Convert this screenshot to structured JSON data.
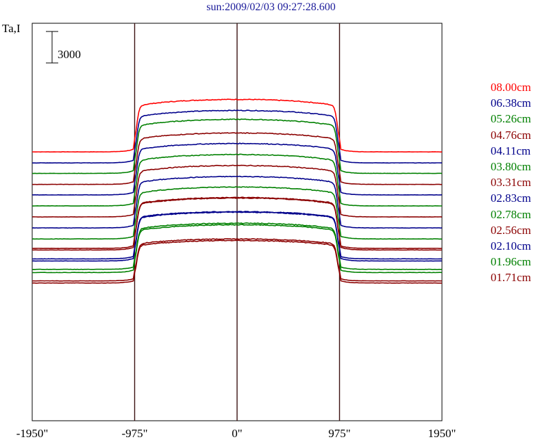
{
  "chart_data": {
    "type": "line",
    "title": "sun:2009/02/03 09:27:28.600",
    "ylabel": "Ta,I",
    "xlabel": "",
    "scale_bar_value": 3000,
    "scale_bar_label": "3000",
    "x_ticks": [
      {
        "value": -1950,
        "label": "-1950\""
      },
      {
        "value": -975,
        "label": "-975\""
      },
      {
        "value": 0,
        "label": "0\""
      },
      {
        "value": 975,
        "label": "975\""
      },
      {
        "value": 1950,
        "label": "1950\""
      }
    ],
    "xlim": [
      -1950,
      1950
    ],
    "vertical_lines": [
      -975,
      0,
      975
    ],
    "grid": false,
    "legend_position": "right",
    "series": [
      {
        "name": "08.00cm",
        "color": "#ff0000",
        "baseline": 0,
        "peak": 5000
      },
      {
        "name": "06.38cm",
        "color": "#00008b",
        "baseline": -1050,
        "peak": 3950
      },
      {
        "name": "05.26cm",
        "color": "#008000",
        "baseline": -2050,
        "peak": 3100
      },
      {
        "name": "04.76cm",
        "color": "#8b0000",
        "baseline": -3100,
        "peak": 1800
      },
      {
        "name": "04.11cm",
        "color": "#00008b",
        "baseline": -4100,
        "peak": 800
      },
      {
        "name": "03.80cm",
        "color": "#008000",
        "baseline": -5150,
        "peak": -250
      },
      {
        "name": "03.31cm",
        "color": "#8b0000",
        "baseline": -6200,
        "peak": -1300
      },
      {
        "name": "02.83cm",
        "color": "#00008b",
        "baseline": -7250,
        "peak": -2350
      },
      {
        "name": "02.78cm",
        "color": "#008000",
        "baseline": -8300,
        "peak": -3350
      },
      {
        "name": "02.56cm",
        "color": "#8b0000",
        "baseline": -9350,
        "peak": -4400
      },
      {
        "name": "02.10cm",
        "color": "#00008b",
        "baseline": -10400,
        "peak": -5750
      },
      {
        "name": "01.96cm",
        "color": "#008000",
        "baseline": -11500,
        "peak": -6950
      },
      {
        "name": "01.71cm",
        "color": "#8b0000",
        "baseline": -12500,
        "peak": -8450
      },
      {
        "name": "",
        "color": "#8b0000",
        "baseline": -9200,
        "peak": -4350
      },
      {
        "name": "",
        "color": "#00008b",
        "baseline": -10200,
        "peak": -5700
      },
      {
        "name": "",
        "color": "#008000",
        "baseline": -11200,
        "peak": -6800
      },
      {
        "name": "",
        "color": "#8b0000",
        "baseline": -12300,
        "peak": -8300
      }
    ]
  }
}
